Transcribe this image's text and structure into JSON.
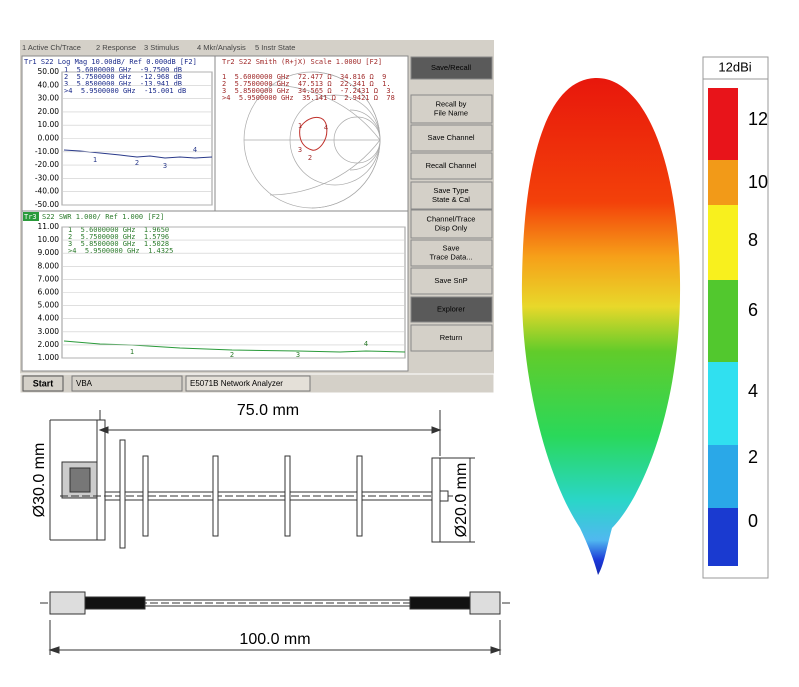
{
  "analyzer": {
    "menu": [
      "1 Active Ch/Trace",
      "2 Response",
      "3 Stimulus",
      "4 Mkr/Analysis",
      "5 Instr State"
    ],
    "marker_ids": [
      "1",
      "2",
      "3",
      "4"
    ],
    "logmag": {
      "header": "Tr1 S22 Log Mag 10.00dB/ Ref 0.000dB [F2]",
      "markers": [
        "1  5.6000000 GHz  -9.7500 dB",
        "2  5.7500000 GHz  -12.968 dB",
        "3  5.8500000 GHz  -13.941 dB",
        ">4  5.9500000 GHz  -15.001 dB"
      ],
      "ylim": [
        -50,
        50
      ],
      "yticks": [
        {
          "value": 50,
          "label": "50.00"
        },
        {
          "value": 40,
          "label": "40.00"
        },
        {
          "value": 30,
          "label": "30.00"
        },
        {
          "value": 20,
          "label": "20.00"
        },
        {
          "value": 10,
          "label": "10.00"
        },
        {
          "value": 0,
          "label": "0.000"
        },
        {
          "value": -10,
          "label": "-10.00"
        },
        {
          "value": -20,
          "label": "-20.00"
        },
        {
          "value": -30,
          "label": "-30.00"
        },
        {
          "value": -40,
          "label": "-40.00"
        },
        {
          "value": -50,
          "label": "-50.00"
        }
      ]
    },
    "smith": {
      "header": "Tr2 S22 Smith (R+jX) Scale 1.000U [F2]",
      "markers": [
        "1  5.6000000 GHz  72.477 Ω  34.816 Ω  9",
        "2  5.7500000 GHz  47.513 Ω  22.341 Ω  1.",
        "3  5.8500000 GHz  34.565 Ω  -7.2431 Ω  3.",
        ">4  5.9500000 GHz  35.141 Ω  2.9421 Ω  78"
      ]
    },
    "swr": {
      "tag": "Tr3",
      "header": "S22 SWR 1.000/ Ref 1.000 [F2]",
      "markers": [
        "1  5.6000000 GHz  1.9650",
        "2  5.7500000 GHz  1.5796",
        "3  5.8500000 GHz  1.5028",
        ">4  5.9500000 GHz  1.4325"
      ],
      "ylim": [
        1,
        11
      ],
      "yticks": [
        {
          "value": 11,
          "label": "11.00"
        },
        {
          "value": 10,
          "label": "10.00"
        },
        {
          "value": 9,
          "label": "9.000"
        },
        {
          "value": 8,
          "label": "8.000"
        },
        {
          "value": 7,
          "label": "7.000"
        },
        {
          "value": 6,
          "label": "6.000"
        },
        {
          "value": 5,
          "label": "5.000"
        },
        {
          "value": 4,
          "label": "4.000"
        },
        {
          "value": 3,
          "label": "3.000"
        },
        {
          "value": 2,
          "label": "2.000"
        },
        {
          "value": 1,
          "label": "1.000"
        }
      ]
    },
    "softkeys": [
      [
        "Save/Recall"
      ],
      [
        "Recall by",
        "File Name"
      ],
      [
        "Save Channel"
      ],
      [
        "Recall Channel"
      ],
      [
        "Save Type",
        "State & Cal"
      ],
      [
        "Channel/Trace",
        "Disp Only"
      ],
      [
        "Save",
        "Trace Data..."
      ],
      [
        "Save SnP"
      ],
      [
        "Explorer"
      ],
      [
        "Return"
      ]
    ],
    "taskbar": {
      "start": "Start",
      "items": [
        "VBA",
        "E5071B Network Analyzer"
      ]
    }
  },
  "pattern": {
    "unit": "12dBi",
    "scale": [
      12,
      10,
      8,
      6,
      4,
      2,
      0
    ]
  },
  "drawing": {
    "length": "75.0 mm",
    "outer_diameter": "Ø30.0 mm",
    "inner_diameter": "Ø20.0 mm",
    "cable_length": "100.0 mm"
  }
}
